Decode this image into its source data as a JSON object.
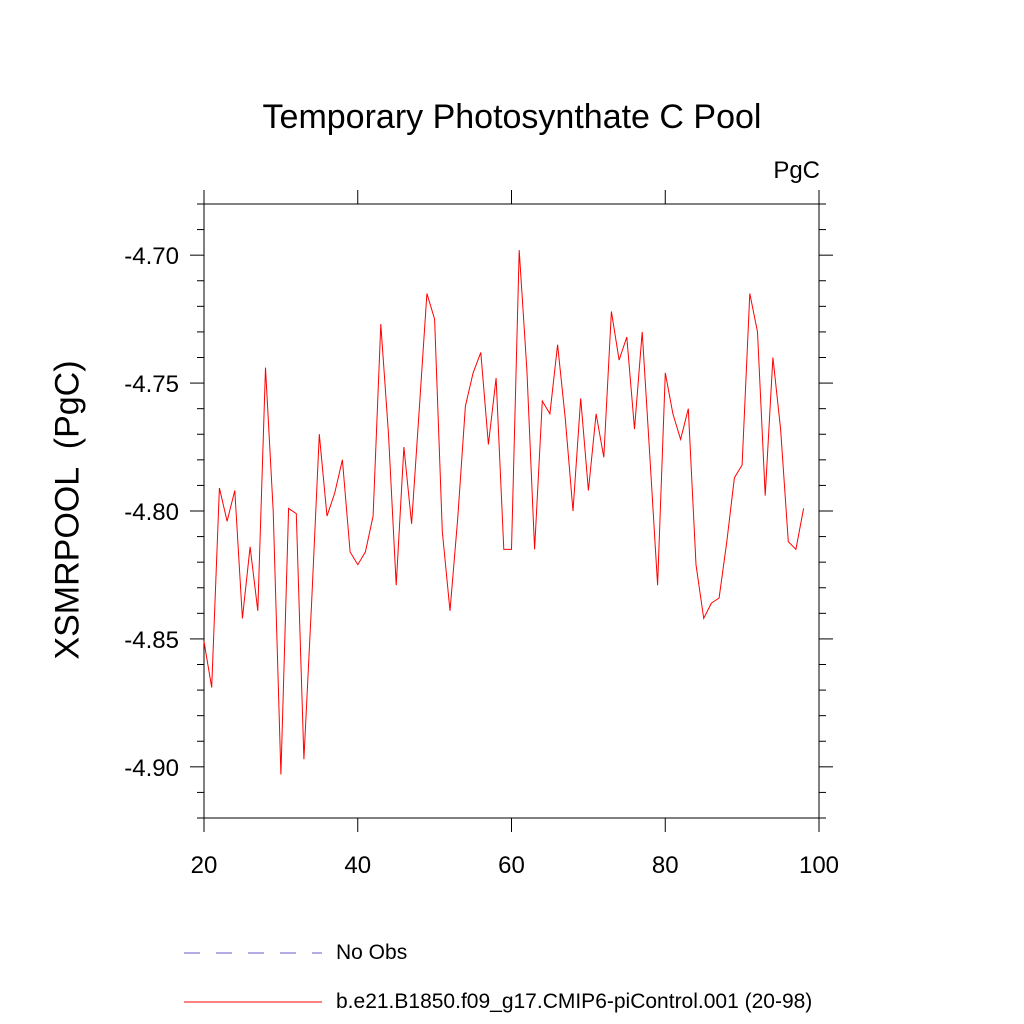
{
  "chart_data": {
    "type": "line",
    "title": "Temporary Photosynthate C Pool",
    "units_label": "PgC",
    "ylabel": "XSMRPOOL  (PgC)",
    "xlabel": "",
    "xlim": [
      20,
      100
    ],
    "ylim": [
      -4.92,
      -4.68
    ],
    "x_ticks": [
      20,
      40,
      60,
      80,
      100
    ],
    "y_ticks": [
      -4.9,
      -4.85,
      -4.8,
      -4.75,
      -4.7
    ],
    "y_tick_labels": [
      "-4.90",
      "-4.85",
      "-4.80",
      "-4.75",
      "-4.70"
    ],
    "grid": false,
    "legend_position": "bottom",
    "series": [
      {
        "name": "No Obs",
        "color": "#6a5acd",
        "style": "dashed",
        "x": [],
        "y": []
      },
      {
        "name": "b.e21.B1850.f09_g17.CMIP6-piControl.001 (20-98)",
        "color": "#ff0000",
        "style": "solid",
        "x": [
          20,
          21,
          22,
          23,
          24,
          25,
          26,
          27,
          28,
          29,
          30,
          31,
          32,
          33,
          34,
          35,
          36,
          37,
          38,
          39,
          40,
          41,
          42,
          43,
          44,
          45,
          46,
          47,
          48,
          49,
          50,
          51,
          52,
          53,
          54,
          55,
          56,
          57,
          58,
          59,
          60,
          61,
          62,
          63,
          64,
          65,
          66,
          67,
          68,
          69,
          70,
          71,
          72,
          73,
          74,
          75,
          76,
          77,
          78,
          79,
          80,
          81,
          82,
          83,
          84,
          85,
          86,
          87,
          88,
          89,
          90,
          91,
          92,
          93,
          94,
          95,
          96,
          97,
          98
        ],
        "y": [
          -4.851,
          -4.869,
          -4.791,
          -4.804,
          -4.792,
          -4.842,
          -4.814,
          -4.839,
          -4.744,
          -4.8,
          -4.903,
          -4.799,
          -4.801,
          -4.897,
          -4.836,
          -4.77,
          -4.802,
          -4.793,
          -4.78,
          -4.816,
          -4.821,
          -4.816,
          -4.802,
          -4.727,
          -4.77,
          -4.829,
          -4.775,
          -4.805,
          -4.76,
          -4.715,
          -4.725,
          -4.808,
          -4.839,
          -4.803,
          -4.759,
          -4.746,
          -4.738,
          -4.774,
          -4.748,
          -4.815,
          -4.815,
          -4.698,
          -4.745,
          -4.815,
          -4.757,
          -4.762,
          -4.735,
          -4.764,
          -4.8,
          -4.756,
          -4.792,
          -4.762,
          -4.779,
          -4.722,
          -4.741,
          -4.732,
          -4.768,
          -4.73,
          -4.779,
          -4.829,
          -4.746,
          -4.762,
          -4.772,
          -4.76,
          -4.821,
          -4.842,
          -4.836,
          -4.834,
          -4.812,
          -4.787,
          -4.782,
          -4.715,
          -4.73,
          -4.794,
          -4.74,
          -4.768,
          -4.812,
          -4.815,
          -4.799
        ]
      }
    ]
  }
}
